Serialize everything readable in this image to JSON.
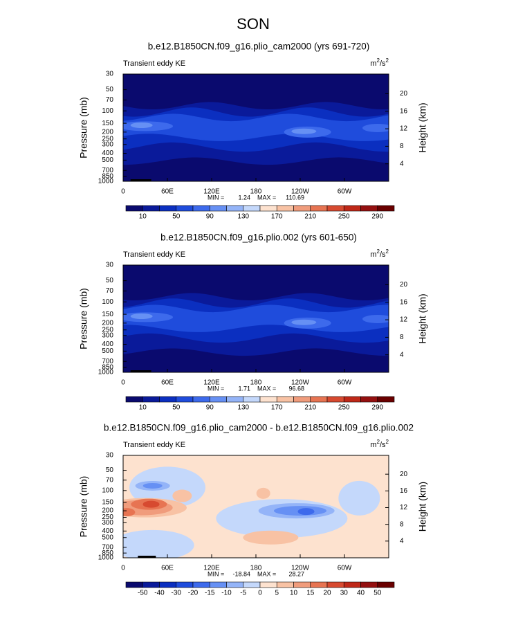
{
  "title": "SON",
  "panels": [
    {
      "title": "b.e12.B1850CN.f09_g16.plio_cam2000 (yrs 691-720)",
      "left_label": "Transient eddy KE",
      "units": [
        "m",
        "2",
        "/s",
        "2"
      ],
      "y_label": "Pressure (mb)",
      "y2_label": "Height (km)",
      "xlim": [
        0,
        360
      ],
      "xticks": [
        0,
        {
          "value": 60,
          "label": "60E"
        },
        {
          "value": 120,
          "label": "120E"
        },
        180,
        {
          "value": 240,
          "label": "120W"
        },
        {
          "value": 300,
          "label": "60W"
        }
      ],
      "ylim": [
        1000,
        30
      ],
      "log_y": true,
      "yticks": [
        30,
        50,
        70,
        100,
        150,
        200,
        250,
        300,
        400,
        500,
        700,
        850,
        1000
      ],
      "y2lim": [
        0,
        24.5
      ],
      "y2ticks": [
        4,
        8,
        12,
        16,
        20
      ],
      "stats": {
        "min_label": "MIN =",
        "min": 1.24,
        "max_label": "MAX =",
        "max": 110.69
      },
      "colorbar": {
        "colors": [
          "#0a0a6e",
          "#0a1a9a",
          "#0b2fc0",
          "#1f4cdc",
          "#3d6aec",
          "#6690f4",
          "#94b4f8",
          "#c4d8fb",
          "#fde2cf",
          "#f8c2a4",
          "#f09c7c",
          "#e77452",
          "#d74a30",
          "#bf2818",
          "#941010",
          "#6a0000"
        ],
        "labels": [
          10,
          50,
          90,
          130,
          170,
          210,
          250,
          290
        ]
      }
    },
    {
      "title": "b.e12.B1850CN.f09_g16.plio.002 (yrs 601-650)",
      "left_label": "Transient eddy KE",
      "units": [
        "m",
        "2",
        "/s",
        "2"
      ],
      "y_label": "Pressure (mb)",
      "y2_label": "Height (km)",
      "xlim": [
        0,
        360
      ],
      "xticks": [
        0,
        {
          "value": 60,
          "label": "60E"
        },
        {
          "value": 120,
          "label": "120E"
        },
        180,
        {
          "value": 240,
          "label": "120W"
        },
        {
          "value": 300,
          "label": "60W"
        }
      ],
      "ylim": [
        1000,
        30
      ],
      "log_y": true,
      "yticks": [
        30,
        50,
        70,
        100,
        150,
        200,
        250,
        300,
        400,
        500,
        700,
        850,
        1000
      ],
      "y2lim": [
        0,
        24.5
      ],
      "y2ticks": [
        4,
        8,
        12,
        16,
        20
      ],
      "stats": {
        "min_label": "MIN =",
        "min": 1.71,
        "max_label": "MAX =",
        "max": 96.68
      },
      "colorbar": {
        "colors": [
          "#0a0a6e",
          "#0a1a9a",
          "#0b2fc0",
          "#1f4cdc",
          "#3d6aec",
          "#6690f4",
          "#94b4f8",
          "#c4d8fb",
          "#fde2cf",
          "#f8c2a4",
          "#f09c7c",
          "#e77452",
          "#d74a30",
          "#bf2818",
          "#941010",
          "#6a0000"
        ],
        "labels": [
          10,
          50,
          90,
          130,
          170,
          210,
          250,
          290
        ]
      }
    },
    {
      "title": "b.e12.B1850CN.f09_g16.plio_cam2000 - b.e12.B1850CN.f09_g16.plio.002",
      "left_label": "Transient eddy KE",
      "units": [
        "m",
        "2",
        "/s",
        "2"
      ],
      "y_label": "Pressure (mb)",
      "y2_label": "Height (km)",
      "xlim": [
        0,
        360
      ],
      "xticks": [
        0,
        {
          "value": 60,
          "label": "60E"
        },
        {
          "value": 120,
          "label": "120E"
        },
        180,
        {
          "value": 240,
          "label": "120W"
        },
        {
          "value": 300,
          "label": "60W"
        }
      ],
      "ylim": [
        1000,
        30
      ],
      "log_y": true,
      "yticks": [
        30,
        50,
        70,
        100,
        150,
        200,
        250,
        300,
        400,
        500,
        700,
        850,
        1000
      ],
      "y2lim": [
        0,
        24.5
      ],
      "y2ticks": [
        4,
        8,
        12,
        16,
        20
      ],
      "stats": {
        "min_label": "MIN =",
        "min": -18.84,
        "max_label": "MAX =",
        "max": 28.27
      },
      "colorbar": {
        "colors": [
          "#0a0a6e",
          "#0a1a9a",
          "#0b2fc0",
          "#1f4cdc",
          "#3d6aec",
          "#6690f4",
          "#94b4f8",
          "#c4d8fb",
          "#fde2cf",
          "#f8c2a4",
          "#f09c7c",
          "#e77452",
          "#d74a30",
          "#bf2818",
          "#941010",
          "#6a0000"
        ],
        "labels": [
          -50,
          -40,
          -30,
          -20,
          -15,
          -10,
          -5,
          0,
          5,
          10,
          15,
          20,
          30,
          40,
          50
        ]
      }
    }
  ]
}
